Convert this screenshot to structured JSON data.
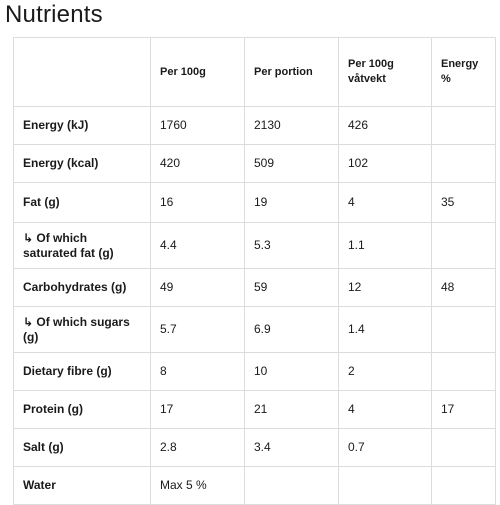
{
  "title": "Nutrients",
  "table": {
    "headers": [
      "",
      "Per 100g",
      "Per portion",
      "Per 100g\nvåtvekt",
      "Energy\n%"
    ],
    "rows": [
      {
        "label": "Energy (kJ)",
        "values": [
          "1760",
          "2130",
          "426",
          ""
        ]
      },
      {
        "label": "Energy (kcal)",
        "values": [
          "420",
          "509",
          "102",
          ""
        ]
      },
      {
        "label": "Fat (g)",
        "values": [
          "16",
          "19",
          "4",
          "35"
        ]
      },
      {
        "label": "↳ Of which saturated fat (g)",
        "values": [
          "4.4",
          "5.3",
          "1.1",
          ""
        ]
      },
      {
        "label": "Carbohydrates (g)",
        "values": [
          "49",
          "59",
          "12",
          "48"
        ]
      },
      {
        "label": "↳ Of which sugars (g)",
        "values": [
          "5.7",
          "6.9",
          "1.4",
          ""
        ]
      },
      {
        "label": "Dietary fibre (g)",
        "values": [
          "8",
          "10",
          "2",
          ""
        ]
      },
      {
        "label": "Protein (g)",
        "values": [
          "17",
          "21",
          "4",
          "17"
        ]
      },
      {
        "label": "Salt (g)",
        "values": [
          "2.8",
          "3.4",
          "0.7",
          ""
        ]
      },
      {
        "label": "Water",
        "values": [
          "Max 5 %",
          "",
          "",
          ""
        ]
      }
    ]
  }
}
